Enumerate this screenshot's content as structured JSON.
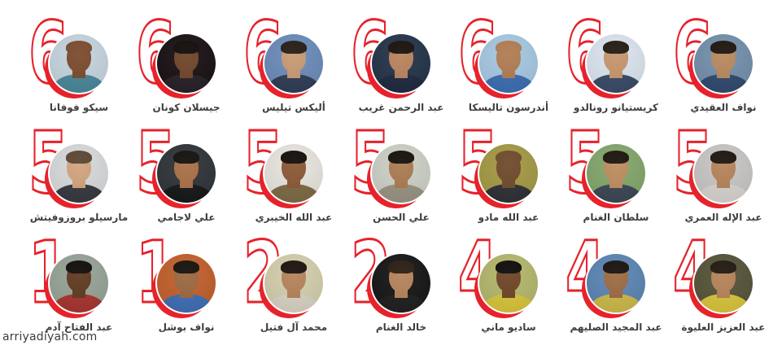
{
  "page": {
    "background": "#ffffff",
    "accent_red": "#e6222b",
    "name_color": "#3f3f3f"
  },
  "watermark": {
    "text": "arriyadiyah.com"
  },
  "grid": {
    "rows": 3,
    "cols": 7
  },
  "players": [
    {
      "number": "6",
      "name": "سيكو فوفانا",
      "photo": {
        "bg": "#c6d5df",
        "skin": "#7b4b2d",
        "hair": "#7b4b2d",
        "shirt": "#49889a"
      }
    },
    {
      "number": "6",
      "name": "جيسلان كونان",
      "photo": {
        "bg": "#191114",
        "skin": "#70452a",
        "hair": "#100b09",
        "shirt": "#262026"
      }
    },
    {
      "number": "6",
      "name": "أليكس تيليس",
      "photo": {
        "bg": "#6b8cba",
        "skin": "#c89a73",
        "hair": "#241b14",
        "shirt": "#2e3c55"
      }
    },
    {
      "number": "6",
      "name": "عبد الرحمن غريب",
      "photo": {
        "bg": "#25344a",
        "skin": "#b8835c",
        "hair": "#17100b",
        "shirt": "#1e2940"
      }
    },
    {
      "number": "6",
      "name": "أندرسون تاليسكا",
      "photo": {
        "bg": "#a6c9e3",
        "skin": "#b17c52",
        "hair": "#b17c52",
        "shirt": "#3c6db2"
      }
    },
    {
      "number": "6",
      "name": "كريستيانو رونالدو",
      "photo": {
        "bg": "#dce5f0",
        "skin": "#c8956c",
        "hair": "#221a12",
        "shirt": "#384a66"
      }
    },
    {
      "number": "6",
      "name": "نواف العقيدي",
      "photo": {
        "bg": "#7590ac",
        "skin": "#b8895e",
        "hair": "#1d140d",
        "shirt": "#2f4a6e"
      }
    },
    {
      "number": "5",
      "name": "مارسيلو بروزوفيتش",
      "photo": {
        "bg": "#d8dadc",
        "skin": "#d2a47d",
        "hair": "#5a4632",
        "shirt": "#35393f"
      }
    },
    {
      "number": "5",
      "name": "علي لاجامي",
      "photo": {
        "bg": "#303438",
        "skin": "#a86f47",
        "hair": "#120f0c",
        "shirt": "#151618"
      }
    },
    {
      "number": "5",
      "name": "عبد الله الخيبري",
      "photo": {
        "bg": "#e9e5df",
        "skin": "#8a5836",
        "hair": "#130d09",
        "shirt": "#7d6a45"
      }
    },
    {
      "number": "5",
      "name": "علي الحسن",
      "photo": {
        "bg": "#cdd1c7",
        "skin": "#aa7b50",
        "hair": "#140f0a",
        "shirt": "#9a9383"
      }
    },
    {
      "number": "5",
      "name": "عبد الله مادو",
      "photo": {
        "bg": "#a59a44",
        "skin": "#6f4a2b",
        "hair": "#6f4a2b",
        "shirt": "#2e3035"
      }
    },
    {
      "number": "5",
      "name": "سلطان الغنام",
      "photo": {
        "bg": "#83a76c",
        "skin": "#bd8d5e",
        "hair": "#1b130c",
        "shirt": "#3c4654"
      }
    },
    {
      "number": "5",
      "name": "عبد الإله العمري",
      "photo": {
        "bg": "#c9c7c5",
        "skin": "#b5835a",
        "hair": "#1c140d",
        "shirt": "#d8d4cf"
      }
    },
    {
      "number": "1",
      "name": "عبد الفتاح آدم",
      "photo": {
        "bg": "#98a497",
        "skin": "#60391f",
        "hair": "#0f0b08",
        "shirt": "#a83430"
      }
    },
    {
      "number": "1",
      "name": "نواف بوشل",
      "photo": {
        "bg": "#c2602c",
        "skin": "#9c6840",
        "hair": "#15100b",
        "shirt": "#3e6db4"
      }
    },
    {
      "number": "2",
      "name": "محمد آل فتيل",
      "photo": {
        "bg": "#d5cfae",
        "skin": "#b5835a",
        "hair": "#1a120c",
        "shirt": "#d9d3c4"
      }
    },
    {
      "number": "2",
      "name": "خالد الغنام",
      "photo": {
        "bg": "#161616",
        "skin": "#b5835a",
        "hair": "#2a1d12",
        "shirt": "#1e1e1e"
      }
    },
    {
      "number": "4",
      "name": "ساديو ماني",
      "photo": {
        "bg": "#b4b86d",
        "skin": "#6f4526",
        "hair": "#0d0b08",
        "shirt": "#d9c53b"
      }
    },
    {
      "number": "4",
      "name": "عبد المجيد الصليهم",
      "photo": {
        "bg": "#5c86b4",
        "skin": "#9c6b43",
        "hair": "#18110b",
        "shirt": "#cdb94a"
      }
    },
    {
      "number": "4",
      "name": "عبد العزيز العليوة",
      "photo": {
        "bg": "#565439",
        "skin": "#b5835a",
        "hair": "#201710",
        "shirt": "#d9c53b"
      }
    }
  ]
}
